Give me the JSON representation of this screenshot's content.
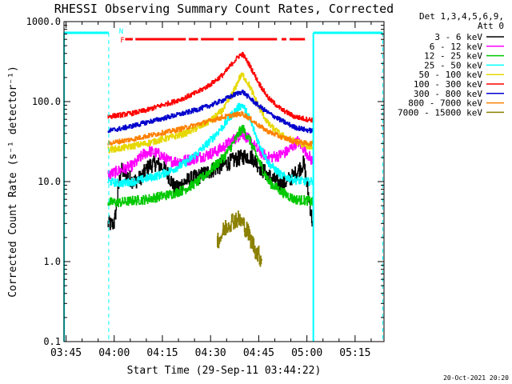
{
  "chart_data": {
    "type": "line",
    "title": "RHESSI Observing Summary Count Rates, Corrected",
    "xlabel": "Start Time (29-Sep-11 03:44:22)",
    "ylabel": "Corrected Count Rate (s⁻¹ detector⁻¹)",
    "yscale": "log",
    "ylim": [
      0.1,
      1000
    ],
    "xlim": [
      "03:44:22",
      "05:24:00"
    ],
    "x_ticks": [
      {
        "t": "03:45",
        "m": 225
      },
      {
        "t": "04:00",
        "m": 240
      },
      {
        "t": "04:15",
        "m": 255
      },
      {
        "t": "04:30",
        "m": 270
      },
      {
        "t": "04:45",
        "m": 285
      },
      {
        "t": "05:00",
        "m": 300
      },
      {
        "t": "05:15",
        "m": 315
      }
    ],
    "y_ticks": [
      {
        "t": "0.1",
        "v": 0.1
      },
      {
        "t": "1.0",
        "v": 1
      },
      {
        "t": "10.0",
        "v": 10
      },
      {
        "t": "100.0",
        "v": 100
      },
      {
        "t": "1000.0",
        "v": 1000
      }
    ],
    "legend": {
      "position": "right",
      "header": [
        "Det 1,3,4,5,6,9,",
        "Att 0"
      ]
    },
    "series": [
      {
        "name": "3 - 6 keV",
        "color": "#000000",
        "noise": 0.1,
        "points": [
          [
            238,
            3
          ],
          [
            239,
            2.9
          ],
          [
            240,
            3
          ],
          [
            242,
            14
          ],
          [
            246,
            10
          ],
          [
            248,
            11
          ],
          [
            251,
            16
          ],
          [
            253,
            17
          ],
          [
            256,
            14
          ],
          [
            259,
            8
          ],
          [
            262,
            10
          ],
          [
            267,
            12
          ],
          [
            272,
            15
          ],
          [
            278,
            19
          ],
          [
            281,
            21
          ],
          [
            283,
            20
          ],
          [
            286,
            14
          ],
          [
            289,
            11
          ],
          [
            292,
            9
          ],
          [
            296,
            12
          ],
          [
            299,
            17
          ],
          [
            302,
            2.5
          ]
        ]
      },
      {
        "name": "6 - 12 keV",
        "color": "#ff00ff",
        "noise": 0.07,
        "points": [
          [
            238,
            12
          ],
          [
            242,
            14
          ],
          [
            246,
            16
          ],
          [
            249,
            22
          ],
          [
            251,
            24
          ],
          [
            254,
            22
          ],
          [
            257,
            18
          ],
          [
            260,
            18
          ],
          [
            264,
            19
          ],
          [
            268,
            21
          ],
          [
            272,
            24
          ],
          [
            276,
            31
          ],
          [
            279,
            38
          ],
          [
            280,
            40
          ],
          [
            282,
            33
          ],
          [
            285,
            24
          ],
          [
            288,
            20
          ],
          [
            291,
            21
          ],
          [
            294,
            24
          ],
          [
            297,
            32
          ],
          [
            299,
            26
          ],
          [
            302,
            17
          ]
        ]
      },
      {
        "name": "12 - 25 keV",
        "color": "#00c800",
        "noise": 0.06,
        "points": [
          [
            238,
            5.5
          ],
          [
            242,
            5.5
          ],
          [
            246,
            5.8
          ],
          [
            250,
            6
          ],
          [
            254,
            6.5
          ],
          [
            258,
            7
          ],
          [
            262,
            8
          ],
          [
            266,
            10
          ],
          [
            270,
            14
          ],
          [
            274,
            20
          ],
          [
            277,
            30
          ],
          [
            279,
            42
          ],
          [
            280,
            46
          ],
          [
            282,
            34
          ],
          [
            285,
            18
          ],
          [
            288,
            10
          ],
          [
            292,
            7.5
          ],
          [
            296,
            6
          ],
          [
            300,
            5.8
          ],
          [
            302,
            5.5
          ]
        ]
      },
      {
        "name": "25 - 50 keV",
        "color": "#00ffff",
        "noise": 0.05,
        "points": [
          [
            238,
            10
          ],
          [
            242,
            9.5
          ],
          [
            246,
            10
          ],
          [
            250,
            11
          ],
          [
            254,
            12
          ],
          [
            258,
            14
          ],
          [
            262,
            17
          ],
          [
            266,
            23
          ],
          [
            270,
            33
          ],
          [
            274,
            50
          ],
          [
            277,
            72
          ],
          [
            279,
            88
          ],
          [
            280,
            90
          ],
          [
            282,
            62
          ],
          [
            285,
            30
          ],
          [
            288,
            17
          ],
          [
            292,
            12
          ],
          [
            296,
            10.5
          ],
          [
            300,
            10
          ],
          [
            302,
            10
          ]
        ]
      },
      {
        "name": "50 - 100 keV",
        "color": "#e6d800",
        "noise": 0.04,
        "points": [
          [
            238,
            25
          ],
          [
            242,
            26
          ],
          [
            246,
            28
          ],
          [
            250,
            30
          ],
          [
            254,
            33
          ],
          [
            258,
            36
          ],
          [
            262,
            40
          ],
          [
            266,
            47
          ],
          [
            270,
            58
          ],
          [
            274,
            80
          ],
          [
            277,
            130
          ],
          [
            279,
            200
          ],
          [
            280,
            215
          ],
          [
            282,
            160
          ],
          [
            285,
            85
          ],
          [
            288,
            52
          ],
          [
            292,
            38
          ],
          [
            296,
            32
          ],
          [
            300,
            28
          ],
          [
            302,
            27
          ]
        ]
      },
      {
        "name": "100 - 300 keV",
        "color": "#ff0000",
        "noise": 0.03,
        "points": [
          [
            238,
            65
          ],
          [
            242,
            68
          ],
          [
            246,
            72
          ],
          [
            250,
            78
          ],
          [
            254,
            88
          ],
          [
            258,
            98
          ],
          [
            262,
            112
          ],
          [
            266,
            132
          ],
          [
            270,
            165
          ],
          [
            274,
            220
          ],
          [
            277,
            310
          ],
          [
            279,
            380
          ],
          [
            280,
            390
          ],
          [
            282,
            290
          ],
          [
            285,
            170
          ],
          [
            288,
            110
          ],
          [
            292,
            80
          ],
          [
            296,
            65
          ],
          [
            300,
            60
          ],
          [
            302,
            59
          ]
        ]
      },
      {
        "name": "300 - 800 keV",
        "color": "#0000cc",
        "noise": 0.03,
        "points": [
          [
            238,
            43
          ],
          [
            242,
            46
          ],
          [
            246,
            50
          ],
          [
            250,
            55
          ],
          [
            254,
            60
          ],
          [
            258,
            66
          ],
          [
            262,
            72
          ],
          [
            266,
            80
          ],
          [
            270,
            90
          ],
          [
            274,
            105
          ],
          [
            277,
            120
          ],
          [
            279,
            130
          ],
          [
            280,
            132
          ],
          [
            282,
            112
          ],
          [
            285,
            88
          ],
          [
            288,
            72
          ],
          [
            292,
            58
          ],
          [
            296,
            48
          ],
          [
            300,
            44
          ],
          [
            302,
            43
          ]
        ]
      },
      {
        "name": "800 - 7000 keV",
        "color": "#ff8000",
        "noise": 0.03,
        "points": [
          [
            238,
            30
          ],
          [
            242,
            32
          ],
          [
            246,
            34
          ],
          [
            250,
            37
          ],
          [
            254,
            40
          ],
          [
            258,
            43
          ],
          [
            262,
            47
          ],
          [
            266,
            52
          ],
          [
            270,
            58
          ],
          [
            274,
            64
          ],
          [
            277,
            68
          ],
          [
            279,
            70
          ],
          [
            280,
            70
          ],
          [
            282,
            62
          ],
          [
            285,
            50
          ],
          [
            288,
            42
          ],
          [
            292,
            36
          ],
          [
            296,
            32
          ],
          [
            300,
            30
          ],
          [
            302,
            30
          ]
        ]
      },
      {
        "name": "7000 - 15000 keV",
        "color": "#8b8000",
        "noise": 0.12,
        "points": [
          [
            272,
            1.9
          ],
          [
            273,
            2.0
          ],
          [
            274,
            2.4
          ],
          [
            275,
            2.8
          ],
          [
            276,
            3.1
          ],
          [
            277,
            3.3
          ],
          [
            278,
            3.4
          ],
          [
            279,
            3.3
          ],
          [
            280,
            3.0
          ],
          [
            281,
            2.6
          ],
          [
            282,
            2.1
          ],
          [
            283,
            1.7
          ],
          [
            284,
            1.4
          ],
          [
            285,
            1.2
          ],
          [
            286,
            1.05
          ]
        ]
      }
    ],
    "attenuator_segments": [
      [
        224.4,
        238.3
      ],
      [
        302.0,
        323.6
      ]
    ],
    "flag_lines": [
      {
        "label": "N",
        "minute": 240.5
      },
      {
        "label": "F",
        "minute": 243.4
      }
    ],
    "flare_segments": [
      [
        243.4,
        245.8
      ],
      [
        246.6,
        262.3
      ],
      [
        263.2,
        266.1
      ],
      [
        267.0,
        277.2
      ],
      [
        278.6,
        290.7
      ],
      [
        292.1,
        293.6
      ],
      [
        294.6,
        299.4
      ]
    ],
    "colors": {
      "attenuator": "#00ffff",
      "flare_bar": "#ff0000"
    }
  },
  "footer": {
    "timestamp": "20-Oct-2021 20:20"
  }
}
